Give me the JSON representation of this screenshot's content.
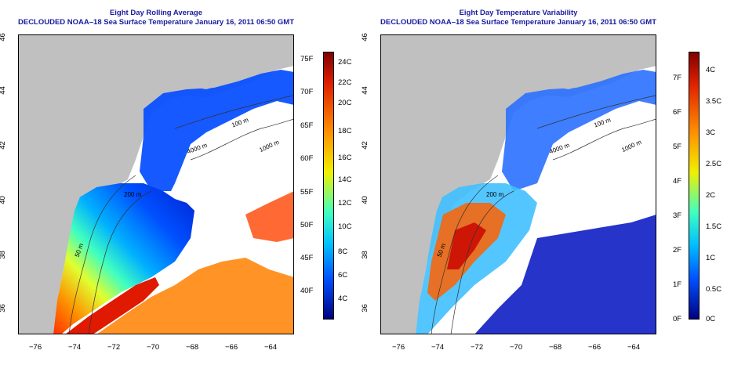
{
  "panels": [
    {
      "title_line1": "Eight Day Rolling Average",
      "title_line2": "DECLOUDED NOAA–18 Sea Surface Temperature January 16, 2011 06:50 GMT",
      "contours": [
        "100 m",
        "1000 m",
        "200 m",
        "50 m",
        "4000 m"
      ],
      "colorbar": {
        "left_labels": [
          "75F",
          "70F",
          "65F",
          "60F",
          "55F",
          "50F",
          "45F",
          "40F"
        ],
        "right_labels": [
          "24C",
          "22C",
          "20C",
          "18C",
          "16C",
          "14C",
          "12C",
          "10C",
          "8C",
          "6C",
          "4C"
        ]
      }
    },
    {
      "title_line1": "Eight Day Temperature Variability",
      "title_line2": "DECLOUDED NOAA–18 Sea Surface Temperature January 16, 2011 06:50 GMT",
      "contours": [
        "100 m",
        "1000 m",
        "200 m",
        "50 m",
        "4000 m"
      ],
      "colorbar": {
        "left_labels": [
          "7F",
          "6F",
          "5F",
          "4F",
          "3F",
          "2F",
          "1F",
          "0F"
        ],
        "right_labels": [
          "4C",
          "3.5C",
          "3C",
          "2.5C",
          "2C",
          "1.5C",
          "1C",
          "0.5C",
          "0C"
        ]
      }
    }
  ],
  "x_ticks": [
    "−76",
    "−74",
    "−72",
    "−70",
    "−68",
    "−66",
    "−64"
  ],
  "y_ticks": [
    "46",
    "44",
    "42",
    "40",
    "38",
    "36"
  ],
  "colors": {
    "land": "#c0c0c0",
    "title": "#1a1aa0",
    "colormap": [
      "#7f0000",
      "#d42000",
      "#ff6000",
      "#ffb000",
      "#f0f000",
      "#a0ff60",
      "#40ffc0",
      "#00c0ff",
      "#0060ff",
      "#0000c0",
      "#00007f"
    ]
  }
}
